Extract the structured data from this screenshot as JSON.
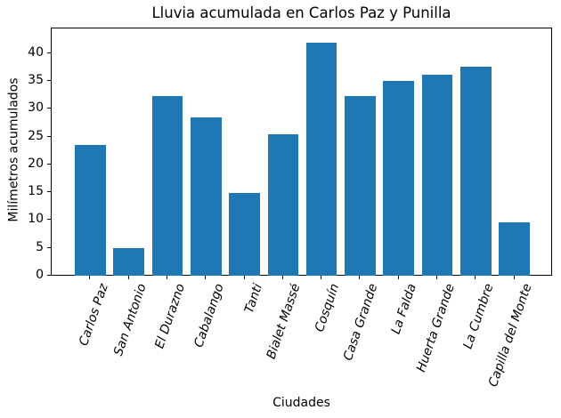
{
  "chart_data": {
    "type": "bar",
    "title": "Lluvia acumulada en Carlos Paz y Punilla",
    "xlabel": "Ciudades",
    "ylabel": "Milímetros acumulados",
    "categories": [
      "Carlos Paz",
      "San Antonio",
      "El Durazno",
      "Cabalango",
      "Tanti",
      "Bialet Massé",
      "Cosquín",
      "Casa Grande",
      "La Falda",
      "Huerta Grande",
      "La Cumbre",
      "Capilla del Monte"
    ],
    "values": [
      23.6,
      5.0,
      32.4,
      28.6,
      15.0,
      25.5,
      42.0,
      32.4,
      35.1,
      36.2,
      37.7,
      9.7
    ],
    "yticks": [
      0,
      5,
      10,
      15,
      20,
      25,
      30,
      35,
      40
    ],
    "ylim": [
      0,
      44.5
    ],
    "bar_color": "#1f77b4",
    "background_color": "#ffffff",
    "text_color": "#000000",
    "grid": false,
    "x_tick_label_style": "italic",
    "x_tick_label_rotation_deg": 71,
    "legend_position": "none"
  }
}
